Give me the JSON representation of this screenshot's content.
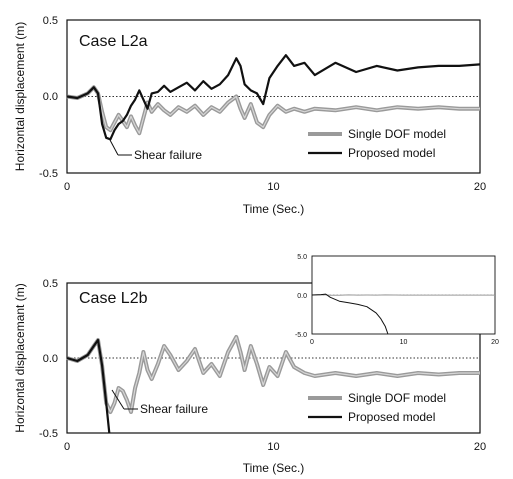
{
  "chart_data": [
    {
      "type": "line",
      "title": "Case L2a",
      "xlabel": "Time (Sec.)",
      "ylabel": "Horizontal displacement (m)",
      "xlim": [
        0,
        20
      ],
      "ylim": [
        -0.5,
        0.5
      ],
      "x_ticks": [
        "0",
        "10",
        "20"
      ],
      "y_ticks": [
        "0.5",
        "0.0",
        "-0.5"
      ],
      "legend_position": "bottom-right",
      "annotation": "Shear failure",
      "colors": {
        "single": "#9a9a9a",
        "proposed": "#111111"
      },
      "series": [
        {
          "name": "Single DOF model",
          "style": "gray-thick",
          "x": [
            0,
            0.5,
            1.0,
            1.3,
            1.5,
            1.7,
            1.9,
            2.1,
            2.3,
            2.5,
            2.7,
            2.9,
            3.1,
            3.3,
            3.5,
            3.7,
            3.9,
            4.1,
            4.4,
            4.7,
            5.0,
            5.4,
            5.8,
            6.2,
            6.6,
            7.0,
            7.4,
            7.8,
            8.2,
            8.4,
            8.6,
            8.9,
            9.2,
            9.5,
            9.8,
            10.2,
            10.6,
            11.0,
            11.5,
            12,
            13,
            14,
            15,
            16,
            17,
            18,
            19,
            20
          ],
          "y": [
            0,
            -0.01,
            0.02,
            0.06,
            0.02,
            -0.1,
            -0.2,
            -0.22,
            -0.17,
            -0.12,
            -0.16,
            -0.2,
            -0.13,
            -0.19,
            -0.24,
            -0.14,
            -0.04,
            -0.1,
            -0.05,
            -0.09,
            -0.12,
            -0.07,
            -0.1,
            -0.06,
            -0.12,
            -0.07,
            -0.1,
            -0.04,
            0.0,
            -0.08,
            -0.14,
            -0.05,
            -0.17,
            -0.2,
            -0.12,
            -0.06,
            -0.1,
            -0.08,
            -0.1,
            -0.08,
            -0.09,
            -0.07,
            -0.09,
            -0.07,
            -0.08,
            -0.07,
            -0.08,
            -0.08
          ]
        },
        {
          "name": "Proposed model",
          "style": "black",
          "x": [
            0,
            0.5,
            1.0,
            1.3,
            1.5,
            1.7,
            1.9,
            2.1,
            2.3,
            2.5,
            2.7,
            2.9,
            3.1,
            3.3,
            3.5,
            3.7,
            3.9,
            4.1,
            4.4,
            4.7,
            5.0,
            5.4,
            5.8,
            6.2,
            6.6,
            7.0,
            7.4,
            7.8,
            8.2,
            8.4,
            8.6,
            8.9,
            9.2,
            9.5,
            9.8,
            10.2,
            10.6,
            11.0,
            11.5,
            12,
            13,
            14,
            15,
            16,
            17,
            18,
            19,
            20
          ],
          "y": [
            0,
            -0.01,
            0.02,
            0.06,
            0.02,
            -0.18,
            -0.27,
            -0.28,
            -0.22,
            -0.18,
            -0.16,
            -0.12,
            -0.06,
            -0.02,
            0.04,
            -0.02,
            -0.08,
            0.02,
            0.03,
            0.07,
            0.03,
            0.06,
            0.09,
            0.04,
            0.1,
            0.05,
            0.08,
            0.14,
            0.25,
            0.2,
            0.08,
            0.04,
            0.02,
            -0.05,
            0.12,
            0.2,
            0.27,
            0.2,
            0.22,
            0.14,
            0.22,
            0.16,
            0.2,
            0.17,
            0.19,
            0.2,
            0.2,
            0.21
          ]
        }
      ]
    },
    {
      "type": "line",
      "title": "Case L2b",
      "xlabel": "Time (Sec.)",
      "ylabel": "Horizontal displacemant (m)",
      "xlim": [
        0,
        20
      ],
      "ylim": [
        -0.5,
        0.5
      ],
      "x_ticks": [
        "0",
        "10",
        "20"
      ],
      "y_ticks": [
        "0.5",
        "0.0",
        "-0.5"
      ],
      "legend_position": "bottom-right",
      "annotation": "Shear failure",
      "colors": {
        "single": "#9a9a9a",
        "proposed": "#111111"
      },
      "series": [
        {
          "name": "Single DOF model",
          "style": "gray-thick",
          "x": [
            0,
            0.5,
            1.0,
            1.3,
            1.5,
            1.7,
            1.9,
            2.1,
            2.3,
            2.5,
            2.7,
            2.9,
            3.1,
            3.3,
            3.5,
            3.7,
            3.9,
            4.1,
            4.4,
            4.7,
            5.0,
            5.4,
            5.8,
            6.2,
            6.6,
            7.0,
            7.4,
            7.8,
            8.2,
            8.4,
            8.6,
            8.9,
            9.2,
            9.5,
            9.8,
            10.2,
            10.6,
            11.0,
            11.5,
            12,
            13,
            14,
            15,
            16,
            17,
            18,
            19,
            20
          ],
          "y": [
            0,
            -0.02,
            0.02,
            0.08,
            0.12,
            -0.05,
            -0.3,
            -0.36,
            -0.3,
            -0.2,
            -0.22,
            -0.28,
            -0.36,
            -0.2,
            -0.1,
            0.04,
            -0.08,
            -0.14,
            -0.04,
            0.08,
            0.02,
            -0.08,
            -0.02,
            0.06,
            -0.1,
            -0.04,
            -0.12,
            0.04,
            0.14,
            0.04,
            -0.08,
            0.08,
            -0.04,
            -0.18,
            -0.06,
            -0.12,
            0.04,
            -0.06,
            -0.1,
            -0.12,
            -0.1,
            -0.12,
            -0.1,
            -0.12,
            -0.1,
            -0.11,
            -0.1,
            -0.1
          ]
        },
        {
          "name": "Proposed model",
          "style": "black",
          "x": [
            0,
            0.5,
            1.0,
            1.3,
            1.5,
            1.7,
            1.9,
            2.05
          ],
          "y": [
            0,
            -0.02,
            0.02,
            0.08,
            0.12,
            -0.05,
            -0.3,
            -0.5
          ]
        }
      ]
    },
    {
      "type": "line",
      "title": "",
      "xlim": [
        0,
        20
      ],
      "ylim": [
        -5.0,
        5.0
      ],
      "x_ticks": [
        "0",
        "10",
        "20"
      ],
      "y_ticks": [
        "5.0",
        "0.0",
        "-5.0"
      ],
      "colors": {
        "single": "#9a9a9a",
        "proposed": "#111111"
      },
      "series": [
        {
          "style": "gray",
          "x": [
            0,
            1,
            1.5,
            2,
            3,
            4,
            5,
            6,
            7,
            8,
            9,
            10,
            12,
            14,
            16,
            18,
            20
          ],
          "y": [
            0,
            0.01,
            0.02,
            -0.03,
            -0.02,
            0.01,
            -0.01,
            0.0,
            -0.01,
            0.01,
            0.0,
            -0.01,
            -0.01,
            -0.01,
            -0.01,
            -0.01,
            -0.01
          ]
        },
        {
          "style": "black",
          "x": [
            0,
            1.0,
            1.5,
            2.0,
            3.0,
            4.0,
            5.0,
            6.0,
            7.0,
            7.5,
            8.0,
            8.3
          ],
          "y": [
            0,
            0.05,
            0.12,
            -0.3,
            -0.8,
            -1.0,
            -1.2,
            -1.5,
            -2.3,
            -3.0,
            -4.0,
            -5.0
          ]
        }
      ]
    }
  ]
}
